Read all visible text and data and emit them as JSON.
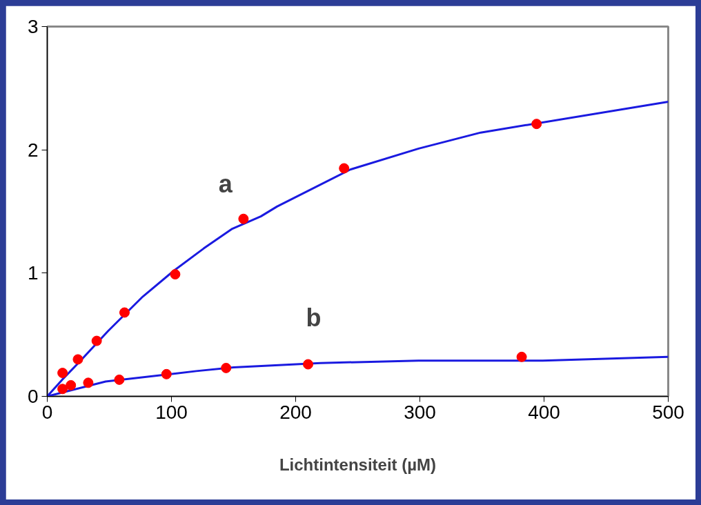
{
  "chart_data": {
    "type": "line",
    "xlabel": "Lichtintensiteit (µM)",
    "xlim": [
      0,
      500
    ],
    "ylim": [
      0,
      3
    ],
    "xticks": [
      0,
      100,
      200,
      300,
      400,
      500
    ],
    "yticks": [
      0,
      1,
      2,
      3
    ],
    "grid": false,
    "line_style": "solid",
    "marker": "none",
    "series": [
      {
        "name": "a",
        "color": "#1a1ae0",
        "x": [
          0,
          12,
          25,
          49,
          77,
          102,
          126,
          149,
          172,
          185,
          244,
          299,
          349,
          500
        ],
        "values": [
          0,
          0.135,
          0.27,
          0.53,
          0.81,
          1.02,
          1.2,
          1.36,
          1.46,
          1.54,
          1.84,
          2.01,
          2.14,
          2.39
        ]
      },
      {
        "name": "b",
        "color": "#1a1ae0",
        "x": [
          0,
          47,
          120,
          150,
          220,
          299,
          399,
          500
        ],
        "values": [
          0,
          0.12,
          0.205,
          0.235,
          0.27,
          0.29,
          0.29,
          0.32
        ]
      },
      {
        "type": "scatter",
        "marker": "circle",
        "color": "#ff0000",
        "x": [
          12.3,
          24.7,
          39.8,
          62.2,
          103,
          158,
          239,
          394
        ],
        "values": [
          0.19,
          0.3,
          0.45,
          0.68,
          0.99,
          1.44,
          1.85,
          2.21
        ]
      },
      {
        "type": "scatter",
        "marker": "circle",
        "color": "#ff0000",
        "x": [
          12.3,
          19,
          33,
          58,
          96,
          144,
          210,
          382
        ],
        "values": [
          0.06,
          0.09,
          0.11,
          0.135,
          0.18,
          0.23,
          0.26,
          0.32
        ]
      }
    ]
  }
}
